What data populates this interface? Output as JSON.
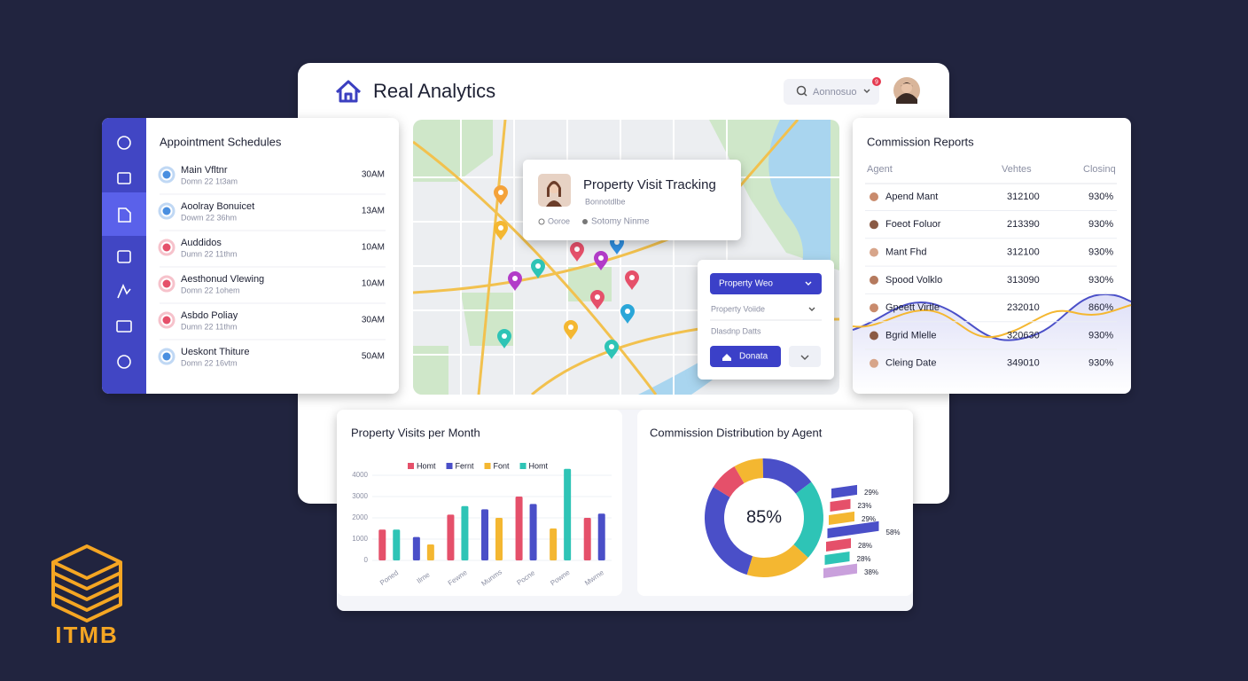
{
  "header": {
    "title": "Real Analytics",
    "search": "Aonnosuo",
    "notification_count": "9"
  },
  "appointments": {
    "title": "Appointment Schedules",
    "items": [
      {
        "name": "Main Vfltnr",
        "detail": "Domn 22 1t3am",
        "time": "30AM"
      },
      {
        "name": "Aoolray Bonuicet",
        "detail": "Dowm 22 36hm",
        "time": "13AM"
      },
      {
        "name": "Auddidos",
        "detail": "Dumn 22 11thm",
        "time": "10AM"
      },
      {
        "name": "Aesthonud Vlewing",
        "detail": "Domn 22 1ohem",
        "time": "10AM"
      },
      {
        "name": "Asbdo Poliay",
        "detail": "Dumn 22 11thm",
        "time": "30AM"
      },
      {
        "name": "Ueskont Thiture",
        "detail": "Domn 22 16vtm",
        "time": "50AM"
      }
    ]
  },
  "map_card": {
    "title": "Property Visit Tracking",
    "subtitle": "Bonnotdlbe",
    "meta": [
      "Ooroe",
      "Sotomy Ninme"
    ]
  },
  "filters": {
    "select_1": "Property Weo",
    "select_2": "Property Voiide",
    "label": "Dlasdnp Datts",
    "button": "Donata"
  },
  "commission_reports": {
    "title": "Commission Reports",
    "columns": [
      "Agent",
      "Vehtes",
      "Closinq"
    ],
    "rows": [
      [
        "Apend Mant",
        "312100",
        "930%"
      ],
      [
        "Foeot Foluor",
        "213390",
        "930%"
      ],
      [
        "Mant Fhd",
        "312100",
        "930%"
      ],
      [
        "Spood Volklo",
        "313090",
        "930%"
      ],
      [
        "Gpeett Virtle",
        "232010",
        "860%"
      ],
      [
        "Bgrid Mlelle",
        "320630",
        "930%"
      ],
      [
        "Cleing Date",
        "349010",
        "930%"
      ]
    ]
  },
  "chart_data": [
    {
      "type": "bar",
      "title": "Property Visits per Month",
      "categories": [
        "Poned",
        "Ilrne",
        "Fewne",
        "Munms",
        "Pocne",
        "Powne",
        "Mwrne"
      ],
      "series": [
        {
          "name": "Homt",
          "color": "#e5506a",
          "values": [
            1450,
            null,
            2150,
            null,
            3000,
            null,
            2000
          ]
        },
        {
          "name": "Fernt",
          "color": "#4a4fc8",
          "values": [
            null,
            1100,
            null,
            2400,
            2650,
            null,
            2200
          ]
        },
        {
          "name": "Font",
          "color": "#f4b731",
          "values": [
            null,
            750,
            null,
            2000,
            null,
            1500,
            null
          ]
        },
        {
          "name": "Homt",
          "color": "#2ec4b6",
          "values": [
            1450,
            null,
            2550,
            null,
            null,
            4300,
            null
          ]
        }
      ],
      "ylim": [
        0,
        4500
      ],
      "yticks": [
        0,
        1000,
        2000,
        3000,
        4000
      ],
      "grid": true
    },
    {
      "type": "pie",
      "title": "Commission Distribution by Agent",
      "center_label": "85%",
      "values": [
        8,
        15,
        22,
        18,
        29,
        8
      ],
      "colors": [
        "#f4b731",
        "#4a4fc8",
        "#2ec4b6",
        "#f4b731",
        "#4a4fc8",
        "#e5506a"
      ],
      "breakdown": {
        "values": [
          29,
          23,
          29,
          58,
          28,
          28,
          38
        ],
        "value_labels": [
          "29%",
          "23%",
          "29%",
          "58%",
          "28%",
          "28%",
          "38%"
        ],
        "colors": [
          "#4a4fc8",
          "#e5506a",
          "#f4b731",
          "#4a4fc8",
          "#e5506a",
          "#2ec4b6",
          "#c9a0dc"
        ]
      }
    }
  ],
  "logo": {
    "text": "ITMB"
  }
}
